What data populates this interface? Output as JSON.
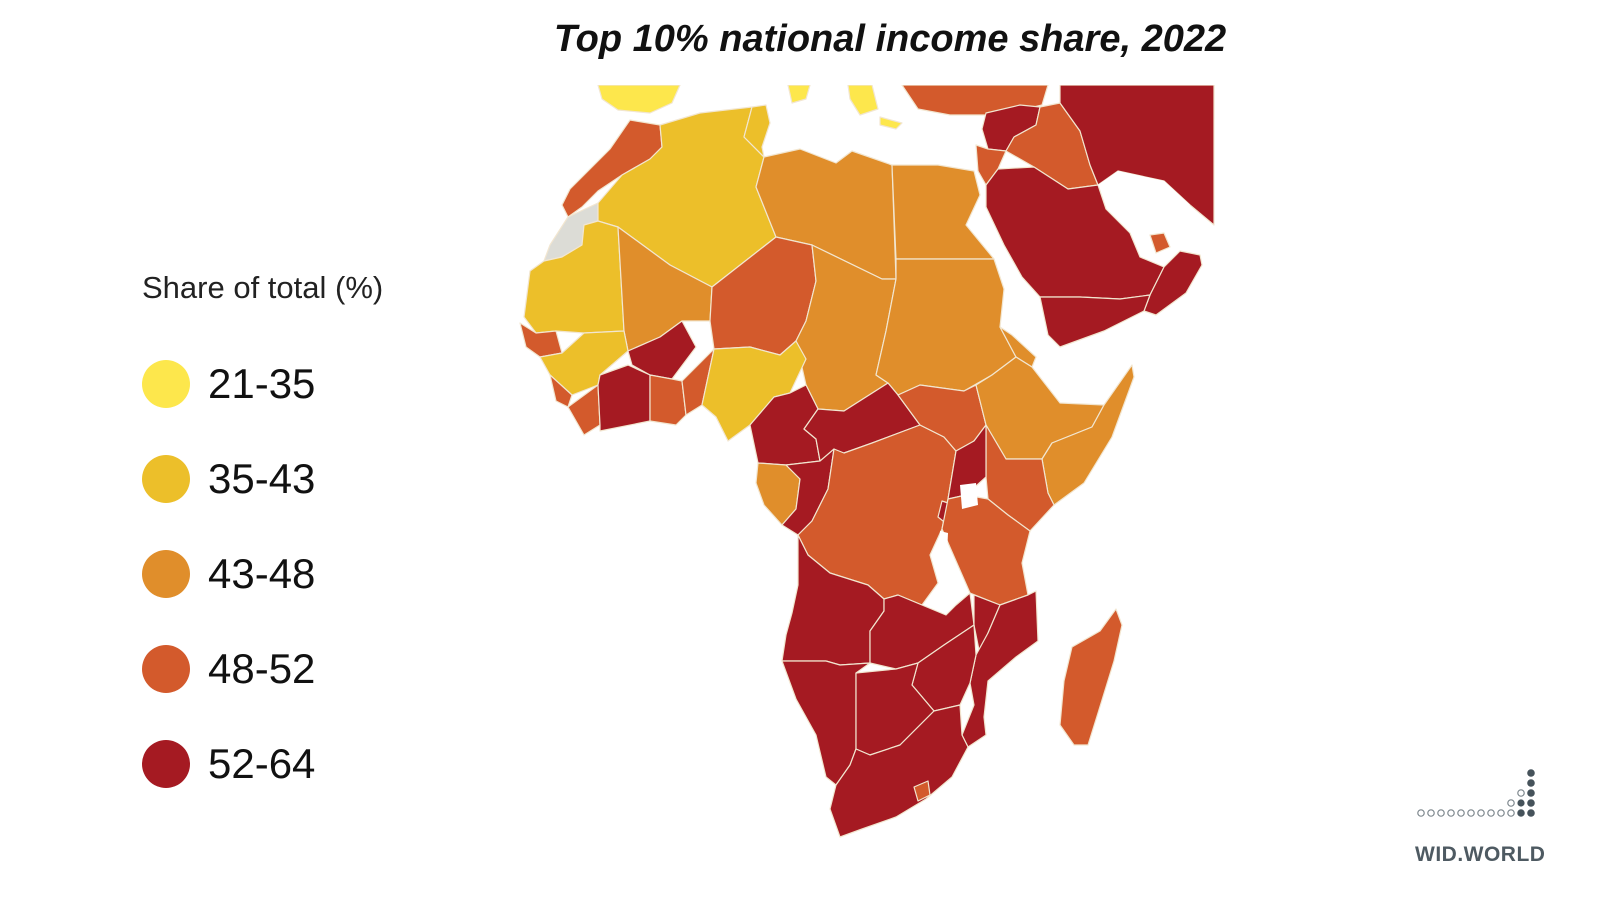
{
  "title": "Top 10% national income share, 2022",
  "legend": {
    "title": "Share of total (%)",
    "items": [
      {
        "label": "21-35",
        "color": "#fde74c"
      },
      {
        "label": "35-43",
        "color": "#ecbf2a"
      },
      {
        "label": "43-48",
        "color": "#e08e2b"
      },
      {
        "label": "48-52",
        "color": "#d35a2c"
      },
      {
        "label": "52-64",
        "color": "#a51a22"
      }
    ]
  },
  "map": {
    "region": "Africa and Middle East",
    "regions": [
      {
        "name": "Morocco",
        "range": "48-52"
      },
      {
        "name": "Western Sahara",
        "range": "no data"
      },
      {
        "name": "Algeria",
        "range": "35-43"
      },
      {
        "name": "Tunisia",
        "range": "35-43"
      },
      {
        "name": "Libya",
        "range": "43-48"
      },
      {
        "name": "Egypt",
        "range": "43-48"
      },
      {
        "name": "Mauritania",
        "range": "35-43"
      },
      {
        "name": "Mali",
        "range": "43-48"
      },
      {
        "name": "Niger",
        "range": "48-52"
      },
      {
        "name": "Chad",
        "range": "43-48"
      },
      {
        "name": "Sudan",
        "range": "43-48"
      },
      {
        "name": "Senegal",
        "range": "48-52"
      },
      {
        "name": "Guinea",
        "range": "35-43"
      },
      {
        "name": "Burkina Faso",
        "range": "52-64"
      },
      {
        "name": "Cote d'Ivoire",
        "range": "52-64"
      },
      {
        "name": "Ghana",
        "range": "48-52"
      },
      {
        "name": "Nigeria",
        "range": "35-43"
      },
      {
        "name": "Cameroon",
        "range": "52-64"
      },
      {
        "name": "Central African Republic",
        "range": "52-64"
      },
      {
        "name": "South Sudan",
        "range": "48-52"
      },
      {
        "name": "Ethiopia",
        "range": "43-48"
      },
      {
        "name": "Somalia",
        "range": "43-48"
      },
      {
        "name": "Kenya",
        "range": "48-52"
      },
      {
        "name": "Uganda",
        "range": "52-64"
      },
      {
        "name": "Gabon",
        "range": "43-48"
      },
      {
        "name": "Congo",
        "range": "52-64"
      },
      {
        "name": "DR Congo",
        "range": "48-52"
      },
      {
        "name": "Tanzania",
        "range": "48-52"
      },
      {
        "name": "Angola",
        "range": "52-64"
      },
      {
        "name": "Zambia",
        "range": "52-64"
      },
      {
        "name": "Malawi",
        "range": "52-64"
      },
      {
        "name": "Mozambique",
        "range": "52-64"
      },
      {
        "name": "Namibia",
        "range": "52-64"
      },
      {
        "name": "Botswana",
        "range": "52-64"
      },
      {
        "name": "Zimbabwe",
        "range": "52-64"
      },
      {
        "name": "South Africa",
        "range": "52-64"
      },
      {
        "name": "Lesotho",
        "range": "48-52"
      },
      {
        "name": "Madagascar",
        "range": "48-52"
      },
      {
        "name": "Saudi Arabia",
        "range": "52-64"
      },
      {
        "name": "Yemen",
        "range": "52-64"
      },
      {
        "name": "Oman",
        "range": "52-64"
      },
      {
        "name": "Iran",
        "range": "52-64"
      },
      {
        "name": "Iraq",
        "range": "48-52"
      },
      {
        "name": "Syria",
        "range": "52-64"
      },
      {
        "name": "Turkey",
        "range": "48-52"
      },
      {
        "name": "Spain",
        "range": "21-35"
      },
      {
        "name": "Italy",
        "range": "21-35"
      }
    ]
  },
  "logo": {
    "text": "WID.WORLD"
  }
}
